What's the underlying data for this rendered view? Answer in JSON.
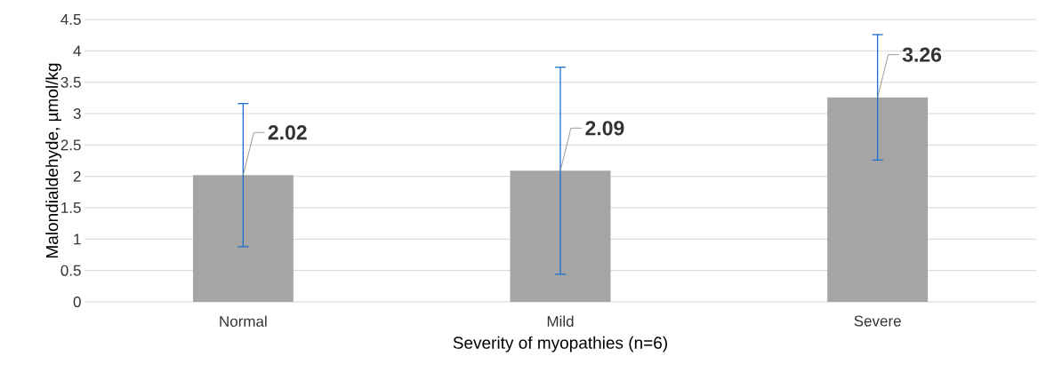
{
  "chart_data": {
    "type": "bar",
    "xlabel": "Severity of myopathies (n=6)",
    "ylabel": "Malondialdehyde, µmol/kg",
    "categories": [
      "Normal",
      "Mild",
      "Severe"
    ],
    "values": [
      2.02,
      2.09,
      3.26
    ],
    "errors": [
      1.14,
      1.65,
      1.0
    ],
    "color": "#a5a5a5",
    "ylim": [
      0,
      4.5
    ],
    "yticks": [
      0,
      {
        "value": 0.5,
        "label": "0.5"
      },
      1,
      {
        "value": 1.5,
        "label": "1.5"
      },
      2,
      {
        "value": 2.5,
        "label": "2.5"
      },
      3,
      {
        "value": 3.5,
        "label": "3.5"
      },
      4,
      {
        "value": 4.5,
        "label": "4.5"
      }
    ],
    "grid": "y",
    "data_labels": true
  }
}
